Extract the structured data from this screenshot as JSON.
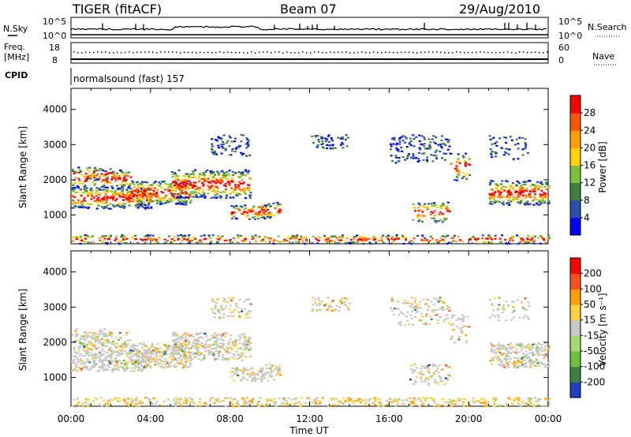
{
  "header": {
    "radar": "TIGER (fitACF)",
    "beam": "Beam 07",
    "date": "29/Aug/2010"
  },
  "top_panels": {
    "nsky_label": "N.Sky",
    "nsearch_label": "N.Search",
    "nsky_ticks": [
      "10^5",
      "10^0"
    ],
    "nsearch_ticks": [
      "10^5",
      "10^0"
    ],
    "freq_label_1": "Freq.",
    "freq_label_2": "[MHz]",
    "freq_ticks": [
      "18",
      "8"
    ],
    "nave_label": "Nave",
    "nave_ticks": [
      "60",
      "0"
    ],
    "cpid_label": "CPID",
    "cpid_value": "normalsound (fast) 157"
  },
  "chart_data": [
    {
      "type": "heatmap",
      "name": "power",
      "ylabel": "Slant Range [km]",
      "xlabel": "",
      "ylim": [
        180,
        4600
      ],
      "xlim": [
        0,
        24
      ],
      "y_ticks": [
        "1000",
        "2000",
        "3000",
        "4000"
      ],
      "colorbar_label": "Power [dB]",
      "colorbar_ticks": [
        "28",
        "24",
        "20",
        "16",
        "12",
        "8",
        "4"
      ],
      "colors": [
        "#0000ff",
        "#2b4fa8",
        "#3f7f3f",
        "#7fbf3f",
        "#ffd200",
        "#ff9f00",
        "#ff5500",
        "#ff0000"
      ]
    },
    {
      "type": "heatmap",
      "name": "velocity",
      "ylabel": "Slant Range [km]",
      "xlabel": "Time UT",
      "ylim": [
        180,
        4600
      ],
      "xlim": [
        0,
        24
      ],
      "y_ticks": [
        "1000",
        "2000",
        "3000",
        "4000"
      ],
      "x_ticks": [
        "00:00",
        "04:00",
        "08:00",
        "12:00",
        "16:00",
        "20:00",
        "00:00"
      ],
      "colorbar_label": "Velocity [m s⁻¹]",
      "colorbar_ticks": [
        "200",
        "100",
        "50",
        "15",
        "-15",
        "-50",
        "-100",
        "-200"
      ],
      "colors": [
        "#2040c0",
        "#3f7f3f",
        "#70c040",
        "#a8d870",
        "#c8c8c8",
        "#ffd040",
        "#ff9f00",
        "#ff5020",
        "#ff0000"
      ]
    }
  ]
}
